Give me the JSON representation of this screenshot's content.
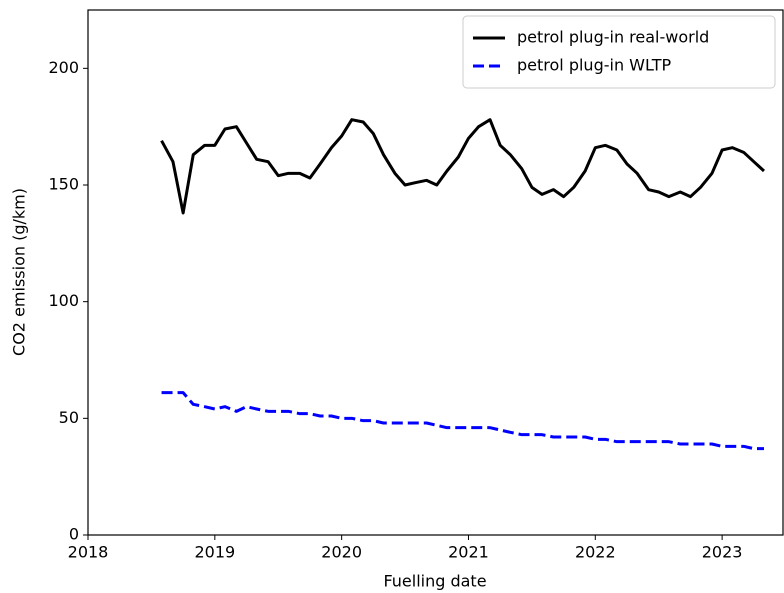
{
  "chart_data": {
    "type": "line",
    "xlabel": "Fuelling date",
    "ylabel": "CO2 emission (g/km)",
    "x": [
      2018.58,
      2018.67,
      2018.75,
      2018.83,
      2018.92,
      2019.0,
      2019.08,
      2019.17,
      2019.25,
      2019.33,
      2019.42,
      2019.5,
      2019.58,
      2019.67,
      2019.75,
      2019.83,
      2019.92,
      2020.0,
      2020.08,
      2020.17,
      2020.25,
      2020.33,
      2020.42,
      2020.5,
      2020.58,
      2020.67,
      2020.75,
      2020.83,
      2020.92,
      2021.0,
      2021.08,
      2021.17,
      2021.25,
      2021.33,
      2021.42,
      2021.5,
      2021.58,
      2021.67,
      2021.75,
      2021.83,
      2021.92,
      2022.0,
      2022.08,
      2022.17,
      2022.25,
      2022.33,
      2022.42,
      2022.5,
      2022.58,
      2022.67,
      2022.75,
      2022.83,
      2022.92,
      2023.0,
      2023.08,
      2023.17,
      2023.25,
      2023.33
    ],
    "series": [
      {
        "name": "petrol plug-in real-world",
        "color": "#000000",
        "linestyle": "solid",
        "values": [
          169,
          160,
          138,
          163,
          167,
          167,
          174,
          175,
          168,
          161,
          160,
          154,
          155,
          155,
          153,
          159,
          166,
          171,
          178,
          177,
          172,
          163,
          155,
          150,
          151,
          152,
          150,
          156,
          162,
          170,
          175,
          178,
          167,
          163,
          157,
          149,
          146,
          148,
          145,
          149,
          156,
          166,
          167,
          165,
          159,
          155,
          148,
          147,
          145,
          147,
          145,
          149,
          155,
          165,
          166,
          164,
          160,
          156
        ]
      },
      {
        "name": "petrol plug-in WLTP",
        "color": "#0000ff",
        "linestyle": "dashed",
        "values": [
          61,
          61,
          61,
          56,
          55,
          54,
          55,
          53,
          55,
          54,
          53,
          53,
          53,
          52,
          52,
          51,
          51,
          50,
          50,
          49,
          49,
          48,
          48,
          48,
          48,
          48,
          47,
          46,
          46,
          46,
          46,
          46,
          45,
          44,
          43,
          43,
          43,
          42,
          42,
          42,
          42,
          41,
          41,
          40,
          40,
          40,
          40,
          40,
          40,
          39,
          39,
          39,
          39,
          38,
          38,
          38,
          37,
          37
        ]
      }
    ],
    "xlim": [
      2018,
      2023.48
    ],
    "xticks": [
      2018,
      2019,
      2020,
      2021,
      2022,
      2023
    ],
    "ylim": [
      0,
      225
    ],
    "yticks": [
      0,
      50,
      100,
      150,
      200
    ],
    "grid": false,
    "legend": "upper right"
  }
}
